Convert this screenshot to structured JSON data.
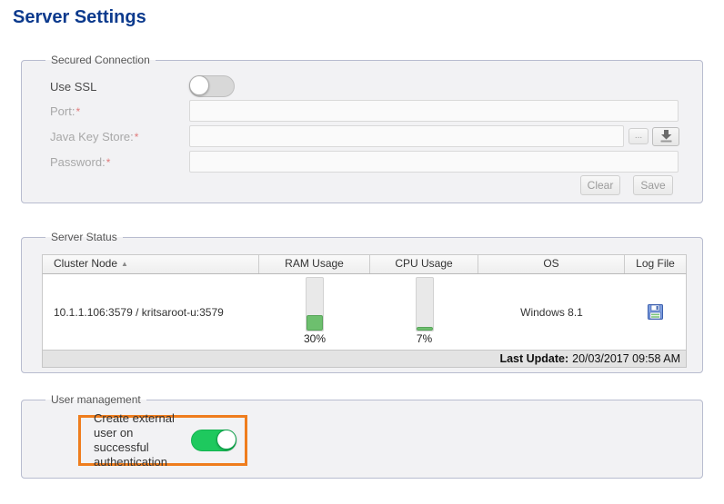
{
  "page": {
    "title": "Server Settings"
  },
  "secured_connection": {
    "legend": "Secured Connection",
    "use_ssl": {
      "label": "Use SSL",
      "state": "off"
    },
    "required_marker": "*",
    "fields": [
      {
        "label": "Port:",
        "value": "",
        "placeholder": ""
      },
      {
        "label": "Java Key Store:",
        "value": "",
        "placeholder": ""
      },
      {
        "label": "Password:",
        "value": "",
        "placeholder": ""
      }
    ],
    "browse_button_label": "...",
    "download_button_icon": "download-icon",
    "clear_button_label": "Clear",
    "save_button_label": "Save"
  },
  "server_status": {
    "legend": "Server Status",
    "table": {
      "columns": [
        "Cluster Node",
        "RAM Usage",
        "CPU Usage",
        "OS",
        "Log File"
      ],
      "sort_column": "Cluster Node",
      "sort_direction": "ascending",
      "sort_ascending_icon": "▲",
      "row": {
        "cluster_node": "10.1.1.106:3579 / kritsaroot-u:3579",
        "ram_usage_percent": 30,
        "ram_usage_label": "30%",
        "cpu_usage_percent": 7,
        "cpu_usage_label": "7%",
        "os": "Windows 8.1",
        "log_file_icon": "floppy-disk-icon"
      }
    },
    "last_update_label": "Last Update:",
    "last_update_value": "20/03/2017 09:58 AM"
  },
  "user_management": {
    "legend": "User management",
    "create_external_user": {
      "label": "Create external user on successful authentication",
      "state": "on"
    }
  },
  "colors": {
    "title_blue": "#0c3a8d",
    "toggle_on_green": "#1ec95e",
    "usage_bar_green": "#6dbf6e",
    "highlight_orange": "#ef7d1d",
    "fieldset_border": "#b8bccf"
  }
}
